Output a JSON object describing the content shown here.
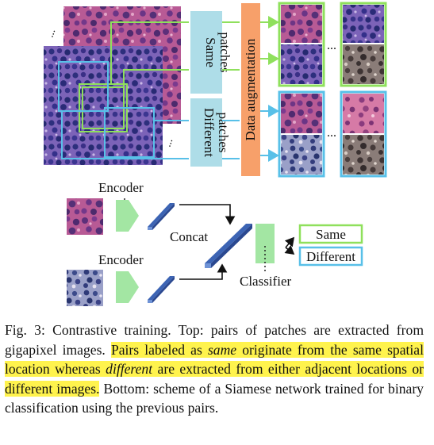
{
  "figure": {
    "same_label": "Same patches",
    "same_line1": "Same",
    "same_line2": "patches",
    "different_line1": "Different",
    "different_line2": "patches",
    "augmentation_label": "Data augmentation",
    "ellipsis": "...",
    "encoder_top": "Encoder",
    "encoder_bottom": "Encoder",
    "concat": "Concat",
    "classifier": "Classifier",
    "out_same": "Same",
    "out_different": "Different",
    "colors": {
      "same_green": "#8fe05c",
      "different_blue": "#58c0e8",
      "patch_box_fill": "#aedde8",
      "augmentation_fill": "#f7a06a",
      "encoder_green": "#a3e6a3",
      "layer_blue": "#3c64b4",
      "tissue_pink": "#b94f8e",
      "tissue_purple": "#5a3d9a"
    }
  },
  "caption": {
    "fig_label": "Fig. 3:",
    "part1": "Contrastive training. Top: pairs of patches are extracted from gigapixel images.",
    "hl_part1": "Pairs labeled as",
    "hl_same": "same",
    "hl_part2": "originate from the same spatial location whereas",
    "hl_different": "different",
    "hl_part3": "are extracted from either adjacent locations or different images.",
    "part2": "Bottom: scheme of a Siamese network trained for binary classification using the previous pairs."
  }
}
